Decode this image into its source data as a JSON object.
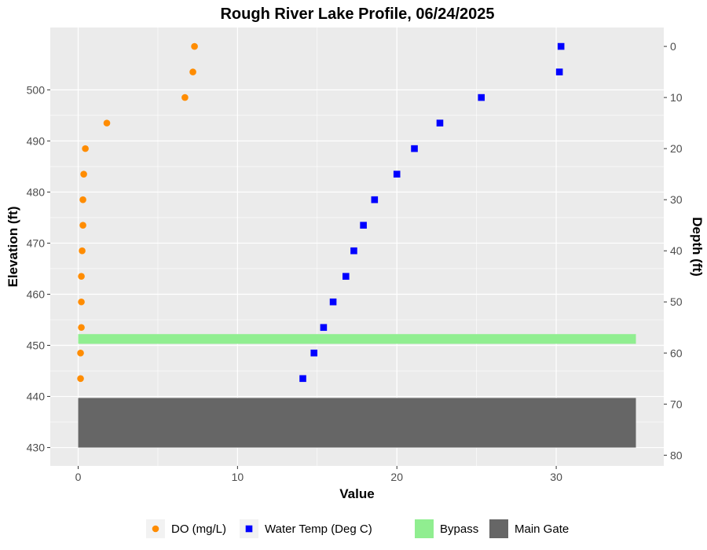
{
  "chart_data": {
    "type": "scatter",
    "title": "Rough River Lake Profile,  06/24/2025",
    "xlabel": "Value",
    "ylabel": "Elevation (ft)",
    "y2label": "Depth (ft)",
    "xlim": [
      -1.75,
      36.75
    ],
    "ylim": [
      426.4,
      512.2
    ],
    "x_ticks": [
      0,
      10,
      20,
      30
    ],
    "y_ticks": [
      430,
      440,
      450,
      460,
      470,
      480,
      490,
      500
    ],
    "y2_ticks": [
      0,
      10,
      20,
      30,
      40,
      50,
      60,
      70,
      80
    ],
    "surface_elevation": 508.5,
    "grid": true,
    "legend_position": "bottom",
    "series": [
      {
        "name": "DO (mg/L)",
        "marker": "circle",
        "color": "#FF8C00",
        "points": [
          {
            "x": 7.3,
            "y": 508.5
          },
          {
            "x": 7.2,
            "y": 503.5
          },
          {
            "x": 6.7,
            "y": 498.5
          },
          {
            "x": 1.8,
            "y": 493.5
          },
          {
            "x": 0.45,
            "y": 488.5
          },
          {
            "x": 0.35,
            "y": 483.5
          },
          {
            "x": 0.3,
            "y": 478.5
          },
          {
            "x": 0.3,
            "y": 473.5
          },
          {
            "x": 0.25,
            "y": 468.5
          },
          {
            "x": 0.2,
            "y": 463.5
          },
          {
            "x": 0.2,
            "y": 458.5
          },
          {
            "x": 0.2,
            "y": 453.5
          },
          {
            "x": 0.15,
            "y": 448.5
          },
          {
            "x": 0.15,
            "y": 443.5
          }
        ]
      },
      {
        "name": "Water Temp (Deg C)",
        "marker": "square",
        "color": "#0000FF",
        "points": [
          {
            "x": 30.3,
            "y": 508.5
          },
          {
            "x": 30.2,
            "y": 503.5
          },
          {
            "x": 25.3,
            "y": 498.5
          },
          {
            "x": 22.7,
            "y": 493.5
          },
          {
            "x": 21.1,
            "y": 488.5
          },
          {
            "x": 20.0,
            "y": 483.5
          },
          {
            "x": 18.6,
            "y": 478.5
          },
          {
            "x": 17.9,
            "y": 473.5
          },
          {
            "x": 17.3,
            "y": 468.5
          },
          {
            "x": 16.8,
            "y": 463.5
          },
          {
            "x": 16.0,
            "y": 458.5
          },
          {
            "x": 15.4,
            "y": 453.5
          },
          {
            "x": 14.8,
            "y": 448.5
          },
          {
            "x": 14.1,
            "y": 443.5
          }
        ]
      }
    ],
    "bands": [
      {
        "name": "Bypass",
        "color": "#90EE90",
        "x": [
          0,
          35
        ],
        "y": [
          450.3,
          452.2
        ]
      },
      {
        "name": "Main Gate",
        "color": "#666666",
        "x": [
          0,
          35
        ],
        "y": [
          430,
          439.7
        ]
      }
    ],
    "legend": [
      {
        "label": "DO (mg/L)",
        "kind": "circle",
        "color": "#FF8C00"
      },
      {
        "label": "Water Temp (Deg C)",
        "kind": "square",
        "color": "#0000FF"
      },
      {
        "label": "Bypass",
        "kind": "box",
        "color": "#90EE90"
      },
      {
        "label": "Main Gate",
        "kind": "box",
        "color": "#666666"
      }
    ]
  }
}
